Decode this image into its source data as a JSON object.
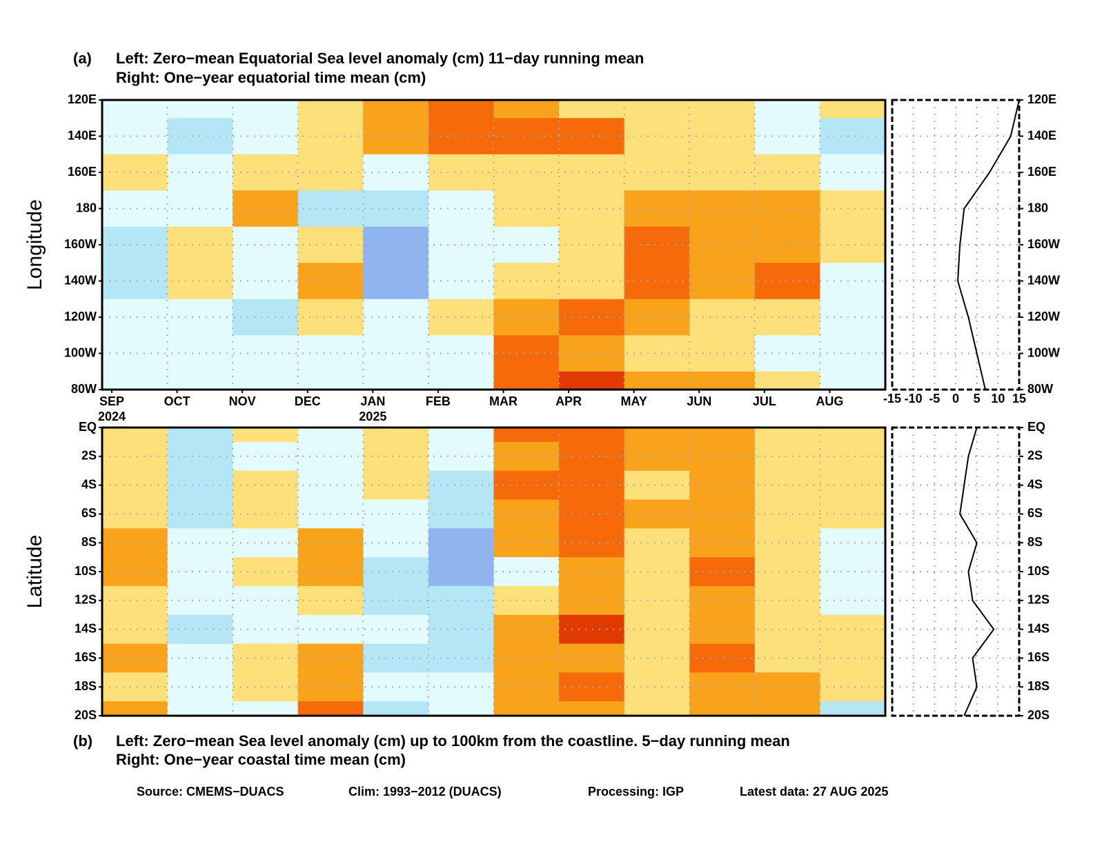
{
  "chart_data": [
    {
      "type": "heatmap",
      "label": "(a)",
      "title": "Left: Zero−mean Equatorial Sea level anomaly (cm) 11−day running mean",
      "subtitle": "Right: One−year equatorial time mean (cm)",
      "ylabel": "Longitude",
      "categories": [
        "SEP",
        "OCT",
        "NOV",
        "DEC",
        "JAN",
        "FEB",
        "MAR",
        "APR",
        "MAY",
        "JUN",
        "JUL",
        "AUG"
      ],
      "year_labels": [
        "2024",
        null,
        null,
        null,
        "2025",
        null,
        null,
        null,
        null,
        null,
        null,
        null
      ],
      "rows": [
        "120E",
        "140E",
        "160E",
        "180",
        "160W",
        "140W",
        "120W",
        "100W",
        "80W"
      ],
      "levels": [
        -9,
        -6,
        -3,
        0,
        3,
        6,
        9
      ],
      "colors": [
        "#4a7fe0",
        "#8fb4f0",
        "#b4e6f5",
        "#e4fbfd",
        "#fde07a",
        "#f9a31c",
        "#f76a0a",
        "#e03a00"
      ],
      "values": [
        [
          -3,
          -3,
          -1,
          1,
          5,
          6,
          4,
          2,
          1,
          0,
          -1,
          0
        ],
        [
          -3,
          -5,
          -1,
          1,
          5,
          8,
          7,
          6,
          2,
          0,
          -3,
          -6
        ],
        [
          0,
          -2,
          2,
          0,
          -3,
          1,
          2,
          0,
          1,
          1,
          1,
          -1
        ],
        [
          -2,
          -2,
          3,
          -4,
          -6,
          -1,
          1,
          1,
          5,
          5,
          3,
          2
        ],
        [
          -4,
          1,
          -2,
          2,
          -9,
          -1,
          -1,
          1,
          7,
          5,
          4,
          1
        ],
        [
          -5,
          1,
          -3,
          3,
          -8,
          -2,
          2,
          1,
          8,
          5,
          6,
          -2
        ],
        [
          -1,
          -2,
          -4,
          1,
          -2,
          0,
          5,
          7,
          4,
          1,
          1,
          -3
        ],
        [
          -1,
          -1,
          -1,
          -2,
          -1,
          -2,
          6,
          5,
          1,
          1,
          -1,
          -2
        ],
        [
          -1,
          -3,
          -2,
          -1,
          -1,
          -2,
          6,
          9,
          5,
          4,
          1,
          -2
        ]
      ]
    },
    {
      "type": "profile",
      "values": [
        15,
        13,
        8,
        2,
        1,
        0.5,
        3,
        5,
        7
      ],
      "xlim": [
        -15,
        15
      ],
      "xticks": [
        -15,
        -10,
        -5,
        0,
        5,
        10,
        15
      ],
      "grid": true,
      "color": "#000000"
    },
    {
      "type": "heatmap",
      "label": "(b)",
      "title": "Left: Zero−mean Sea level anomaly (cm) up to 100km from the coastline. 5−day running mean",
      "subtitle": "Right: One−year coastal time mean (cm)",
      "ylabel": "Latitude",
      "rows": [
        "EQ",
        "2S",
        "4S",
        "6S",
        "8S",
        "10S",
        "12S",
        "14S",
        "16S",
        "18S",
        "20S"
      ],
      "levels": [
        -9,
        -6,
        -3,
        0,
        3,
        6,
        9
      ],
      "colors": [
        "#4a7fe0",
        "#8fb4f0",
        "#b4e6f5",
        "#e4fbfd",
        "#fde07a",
        "#f9a31c",
        "#f76a0a",
        "#e03a00"
      ],
      "values": [
        [
          0,
          -4,
          1,
          -1,
          0,
          -3,
          6,
          8,
          4,
          3,
          2,
          0
        ],
        [
          1,
          -4,
          -1,
          -1,
          1,
          -3,
          5,
          7,
          3,
          4,
          2,
          0
        ],
        [
          2,
          -5,
          1,
          -2,
          0,
          -4,
          6,
          8,
          2,
          3,
          1,
          0
        ],
        [
          1,
          -4,
          0,
          -1,
          -1,
          -4,
          4,
          8,
          3,
          5,
          2,
          1
        ],
        [
          3,
          -2,
          -2,
          3,
          -1,
          -7,
          3,
          7,
          2,
          4,
          1,
          -1
        ],
        [
          4,
          -3,
          1,
          3,
          -4,
          -8,
          -1,
          5,
          2,
          6,
          1,
          -2
        ],
        [
          2,
          -3,
          -2,
          2,
          -5,
          -5,
          1,
          4,
          2,
          5,
          1,
          -1
        ],
        [
          1,
          -4,
          -3,
          -1,
          -3,
          -6,
          3,
          10,
          2,
          5,
          1,
          2
        ],
        [
          3,
          -3,
          1,
          4,
          -4,
          -5,
          3,
          4,
          1,
          6,
          2,
          1
        ],
        [
          2,
          -2,
          1,
          3,
          -2,
          -1,
          3,
          6,
          1,
          4,
          4,
          0
        ],
        [
          5,
          -1,
          -2,
          7,
          -5,
          -2,
          3,
          5,
          2,
          3,
          4,
          -4
        ]
      ]
    },
    {
      "type": "profile",
      "values": [
        5,
        3,
        2,
        1,
        5,
        3,
        4,
        9,
        4,
        5,
        2
      ],
      "xlim": [
        -15,
        15
      ],
      "grid": true,
      "color": "#000000"
    }
  ],
  "footer": [
    "Source: CMEMS−DUACS",
    "Clim: 1993−2012 (DUACS)",
    "Processing: IGP",
    "Latest data: 27 AUG 2025"
  ]
}
